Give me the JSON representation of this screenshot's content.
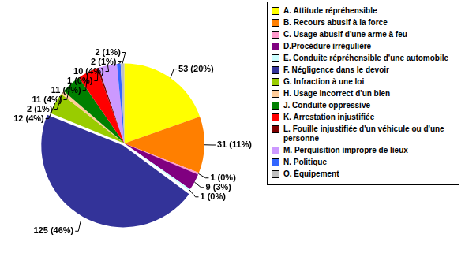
{
  "chart_data": {
    "type": "pie",
    "categories": [
      "A. Attitude répréhensible",
      "B. Recours abusif à la force",
      "C. Usage abusif d'une arme à feu",
      "D.Procédure irrégulière",
      "E. Conduite répréhensible d'une automobile",
      "F. Négligence dans le devoir",
      "G. Infraction à une loi",
      "H. Usage incorrect d'un bien",
      "J. Conduite oppressive",
      "K. Arrestation injustifiée",
      "L. Fouille injustifiée d'un véhicule ou d'une personne",
      "M. Perquisition impropre de lieux",
      "N. Politique",
      "O. Équipement"
    ],
    "values": [
      53,
      31,
      1,
      9,
      1,
      125,
      12,
      2,
      11,
      11,
      1,
      10,
      2,
      2
    ],
    "value_labels": [
      "53 (20%)",
      "31 (11%)",
      "1 (0%)",
      "9 (3%)",
      "1 (0%)",
      "125 (46%)",
      "12 (4%)",
      "2 (1%)",
      "11 (4%)",
      "11 (4%)",
      "1 (0%)",
      "10 (4%)",
      "2 (1%)",
      "2 (1%)"
    ],
    "colors": [
      "#ffff00",
      "#ff7f00",
      "#ff99cc",
      "#800080",
      "#ccffff",
      "#333399",
      "#99cc00",
      "#ffcc99",
      "#008000",
      "#ff0000",
      "#800000",
      "#cc99ff",
      "#3366ff",
      "#c0c0c0"
    ],
    "data_labels": true,
    "legend": "right"
  }
}
